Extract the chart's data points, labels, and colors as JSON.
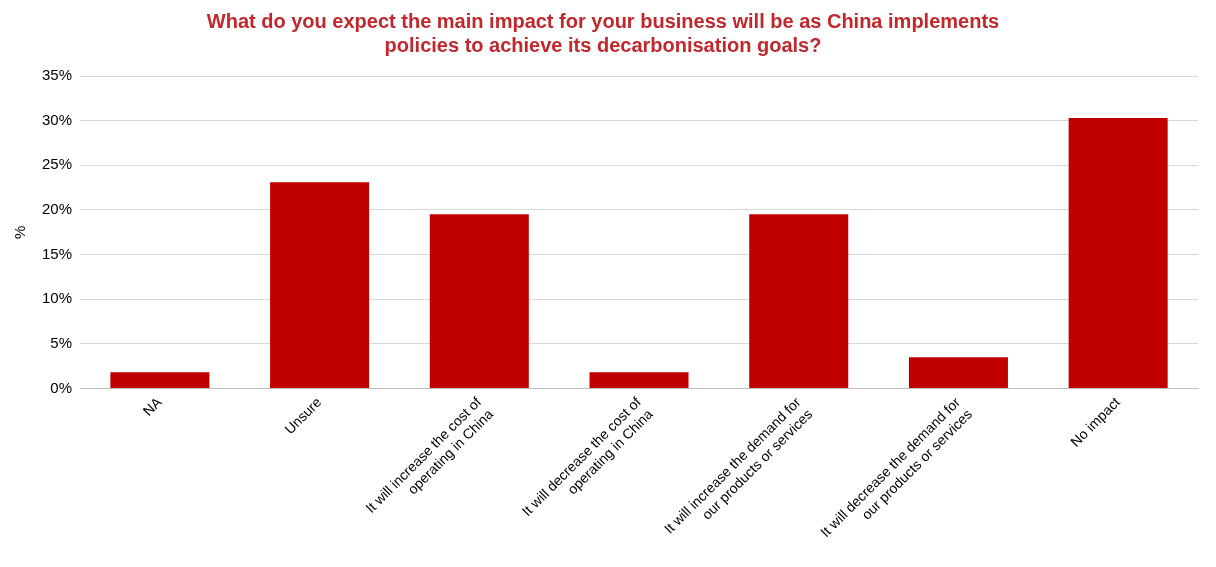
{
  "chart_data": {
    "type": "bar",
    "title": "What do you expect the main impact for your business will be as China implements policies to achieve its decarbonisation goals?",
    "ylabel": "%",
    "categories": [
      "NA",
      "Unsure",
      "It will increase the cost of operating in China",
      "It will decrease the cost of operating in China",
      "It will increase the demand for our products or services",
      "It will decrease the demand for our products or services",
      "No impact"
    ],
    "values": [
      1.8,
      23.1,
      19.5,
      1.8,
      19.5,
      3.5,
      30.3
    ],
    "color": "#c00000",
    "ylim": [
      0,
      35
    ],
    "yticks": [
      {
        "value": 0,
        "label": "0%"
      },
      {
        "value": 5,
        "label": "5%"
      },
      {
        "value": 10,
        "label": "10%"
      },
      {
        "value": 15,
        "label": "15%"
      },
      {
        "value": 20,
        "label": "20%"
      },
      {
        "value": 25,
        "label": "25%"
      },
      {
        "value": 30,
        "label": "30%"
      },
      {
        "value": 35,
        "label": "35%"
      }
    ],
    "grid": "y",
    "legend": false
  }
}
